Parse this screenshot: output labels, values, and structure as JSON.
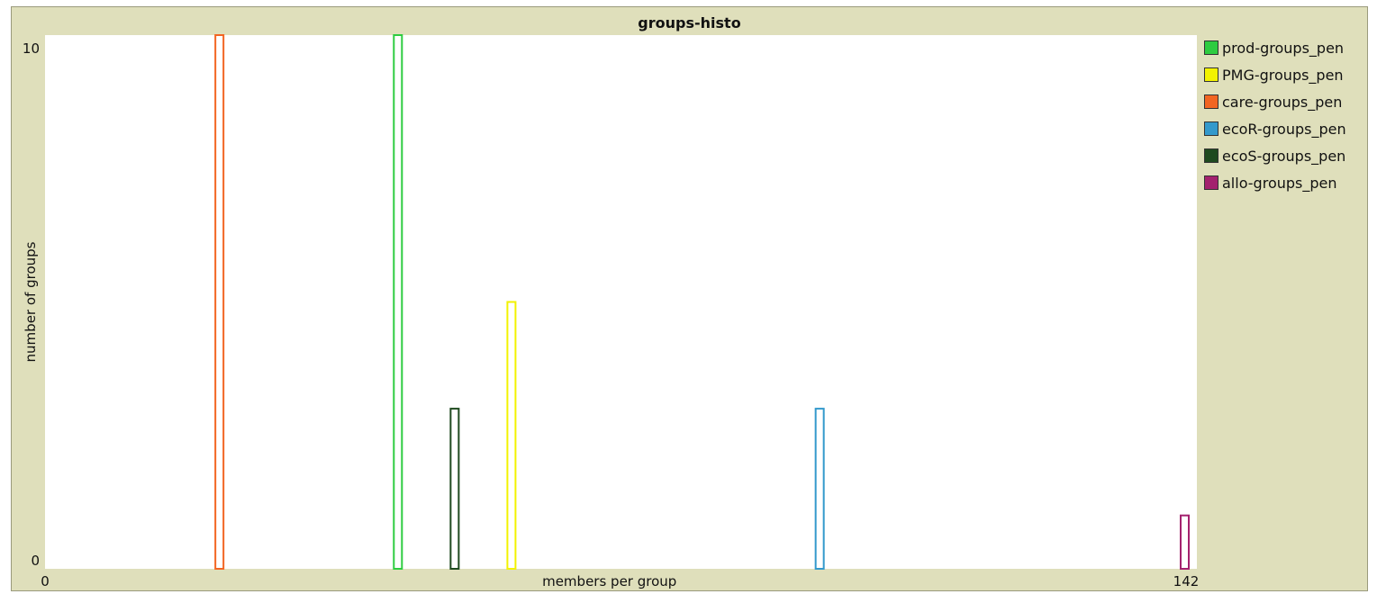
{
  "chart_data": {
    "type": "bar",
    "title": "groups-histo",
    "xlabel": "members per group",
    "ylabel": "number of groups",
    "xlim": [
      0,
      142
    ],
    "ylim": [
      0,
      10
    ],
    "x_tick_labels": [
      "0",
      "142"
    ],
    "y_tick_labels": [
      "0",
      "10"
    ],
    "grid": false,
    "legend_position": "right",
    "bar_width": 1,
    "series": [
      {
        "name": "prod-groups_pen",
        "color": "#2ecc40",
        "bars": [
          {
            "x": 43,
            "y": 10
          }
        ]
      },
      {
        "name": "PMG-groups_pen",
        "color": "#f2f200",
        "bars": [
          {
            "x": 57,
            "y": 5
          }
        ]
      },
      {
        "name": "care-groups_pen",
        "color": "#f26522",
        "bars": [
          {
            "x": 21,
            "y": 10
          }
        ]
      },
      {
        "name": "ecoR-groups_pen",
        "color": "#3399cc",
        "bars": [
          {
            "x": 95,
            "y": 3
          }
        ]
      },
      {
        "name": "ecoS-groups_pen",
        "color": "#1f4a1f",
        "bars": [
          {
            "x": 50,
            "y": 3
          }
        ]
      },
      {
        "name": "allo-groups_pen",
        "color": "#a3216e",
        "bars": [
          {
            "x": 140,
            "y": 1
          }
        ]
      }
    ]
  }
}
